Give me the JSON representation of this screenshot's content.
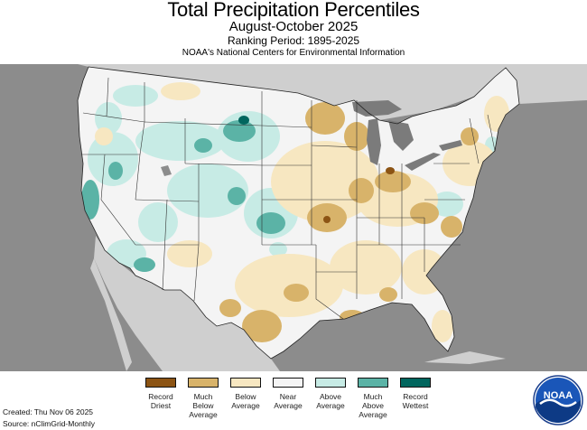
{
  "header": {
    "title": "Total Precipitation Percentiles",
    "subtitle": "August-October 2025",
    "ranking_period": "Ranking Period: 1895-2025",
    "agency": "NOAA's National Centers for Environmental Information"
  },
  "legend": {
    "items": [
      {
        "label": "Record Driest",
        "color": "#8c5414"
      },
      {
        "label": "Much Below Average",
        "color": "#d8b36a"
      },
      {
        "label": "Below Average",
        "color": "#f7e7c1"
      },
      {
        "label": "Near Average",
        "color": "#f4f4f4"
      },
      {
        "label": "Above Average",
        "color": "#c7ebe5"
      },
      {
        "label": "Much Above Average",
        "color": "#5bb3a6"
      },
      {
        "label": "Record Wettest",
        "color": "#01665e"
      }
    ]
  },
  "footer": {
    "created": "Created: Thu Nov 06 2025",
    "source": "Source: nClimGrid-Monthly"
  },
  "logo": {
    "text": "NOAA",
    "icon": "noaa-logo-icon"
  },
  "colors": {
    "background_land": "#9a9a9a",
    "surrounding_land": "#cfcfcf",
    "ocean": "#8c8c8c",
    "great_lakes": "#7b7b7b"
  }
}
